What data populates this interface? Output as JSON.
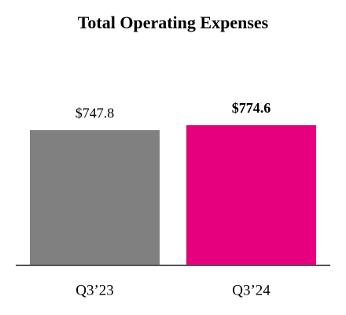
{
  "chart_data": {
    "type": "bar",
    "title": "Total Operating Expenses",
    "categories": [
      "Q3’23",
      "Q3’24"
    ],
    "values": [
      747.8,
      774.6
    ],
    "value_labels": [
      "$747.8",
      "$774.6"
    ],
    "colors": [
      "#808080",
      "#e6007e"
    ],
    "bold_labels": [
      false,
      true
    ]
  }
}
